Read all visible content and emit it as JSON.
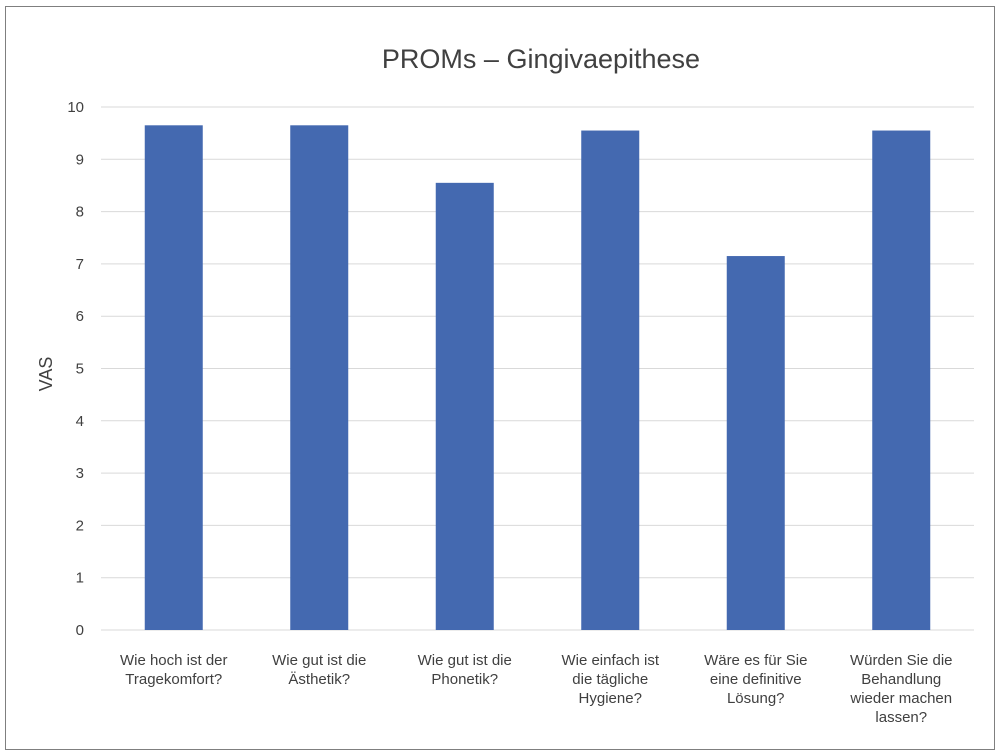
{
  "chart_data": {
    "type": "bar",
    "title": "PROMs – Gingivaepithese",
    "xlabel": "",
    "ylabel": "VAS",
    "ylim": [
      0,
      10
    ],
    "yticks": [
      0,
      1,
      2,
      3,
      4,
      5,
      6,
      7,
      8,
      9,
      10
    ],
    "grid": true,
    "legend": "none",
    "bar_color": "#4469b0",
    "grid_color": "#d9d9d9",
    "categories": [
      "Wie hoch ist der Tragekomfort?",
      "Wie gut ist die Ästhetik?",
      "Wie gut ist die Phonetik?",
      "Wie einfach ist die tägliche Hygiene?",
      "Wäre es für Sie eine definitive Lösung?",
      "Würden Sie die Behandlung wieder machen lassen?"
    ],
    "category_lines": [
      [
        "Wie hoch ist der",
        "Tragekomfort?"
      ],
      [
        "Wie gut ist die",
        "Ästhetik?"
      ],
      [
        "Wie gut ist die",
        "Phonetik?"
      ],
      [
        "Wie einfach ist",
        "die tägliche",
        "Hygiene?"
      ],
      [
        "Wäre es für Sie",
        "eine definitive",
        "Lösung?"
      ],
      [
        "Würden Sie die",
        "Behandlung",
        "wieder machen",
        "lassen?"
      ]
    ],
    "values": [
      9.65,
      9.65,
      8.55,
      9.55,
      7.15,
      9.55
    ]
  }
}
